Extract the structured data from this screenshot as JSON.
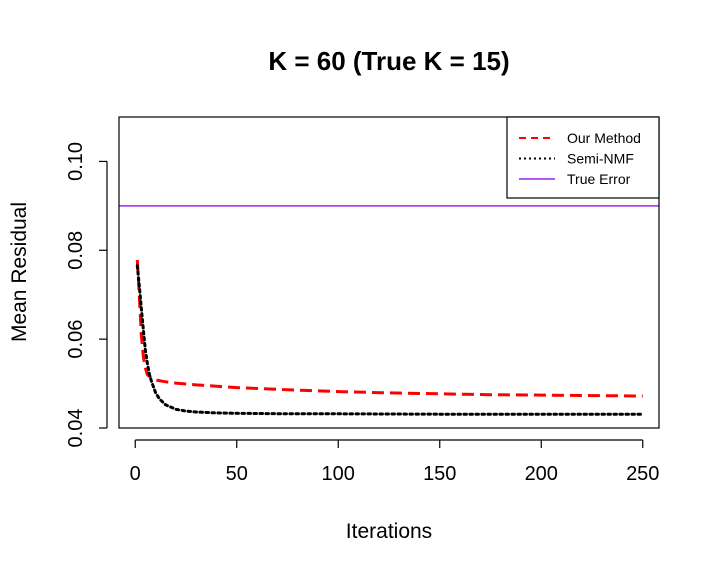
{
  "chart_data": {
    "type": "line",
    "title": "K = 60 (True K = 15)",
    "xlabel": "Iterations",
    "ylabel": "Mean Residual",
    "xlim": [
      -8,
      258
    ],
    "ylim": [
      0.04,
      0.11
    ],
    "x_ticks": [
      0,
      50,
      100,
      150,
      200,
      250
    ],
    "x_tick_labels": [
      "0",
      "50",
      "100",
      "150",
      "200",
      "250"
    ],
    "y_ticks": [
      0.04,
      0.06,
      0.08,
      0.1
    ],
    "y_tick_labels": [
      "0.04",
      "0.06",
      "0.08",
      "0.10"
    ],
    "grid": false,
    "legend_position": "top-right",
    "series": [
      {
        "name": "Our Method",
        "style": "dashed",
        "color": "#ff0000",
        "x": [
          1,
          2,
          3,
          4,
          5,
          6,
          8,
          10,
          15,
          20,
          30,
          40,
          50,
          75,
          100,
          125,
          150,
          175,
          200,
          225,
          250
        ],
        "y": [
          0.0778,
          0.07,
          0.061,
          0.056,
          0.0535,
          0.052,
          0.0512,
          0.0508,
          0.0504,
          0.0501,
          0.0497,
          0.0494,
          0.0491,
          0.0486,
          0.0482,
          0.0479,
          0.0477,
          0.0475,
          0.0474,
          0.0473,
          0.0472
        ]
      },
      {
        "name": "Semi-NMF",
        "style": "dotted",
        "color": "#000000",
        "x": [
          1,
          2,
          3,
          4,
          5,
          6,
          7,
          8,
          10,
          12,
          15,
          20,
          25,
          30,
          40,
          50,
          75,
          100,
          150,
          200,
          250
        ],
        "y": [
          0.0765,
          0.072,
          0.067,
          0.062,
          0.0575,
          0.0545,
          0.052,
          0.0505,
          0.048,
          0.0465,
          0.0452,
          0.0442,
          0.0438,
          0.0436,
          0.0434,
          0.0433,
          0.0432,
          0.0432,
          0.0431,
          0.0431,
          0.0431
        ]
      },
      {
        "name": "True Error",
        "style": "solid",
        "color": "#a020f0",
        "hline": 0.09
      }
    ]
  }
}
